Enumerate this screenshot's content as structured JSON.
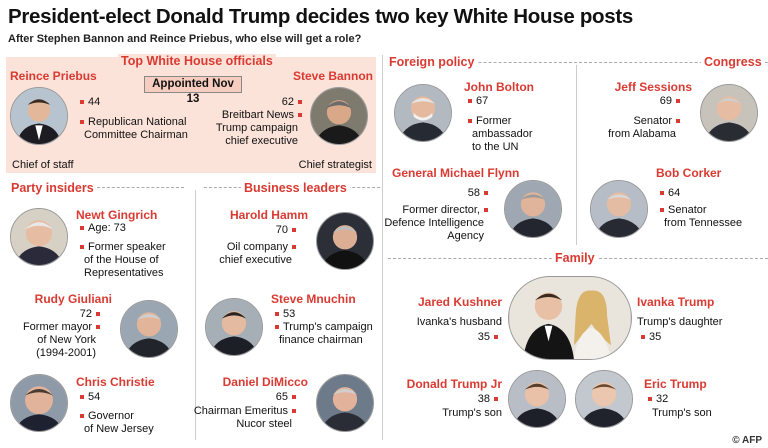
{
  "header": {
    "title": "President-elect Donald Trump decides two key White House posts",
    "subtitle": "After Stephen Bannon and Reince Priebus, who else will get a role?"
  },
  "sections": {
    "white_house": "Top White House officials",
    "party_insiders": "Party insiders",
    "business_leaders": "Business leaders",
    "foreign_policy": "Foreign policy",
    "congress": "Congress",
    "family": "Family"
  },
  "appointed_badge": "Appointed Nov 13",
  "people": {
    "priebus": {
      "name": "Reince Priebus",
      "age": "44",
      "role": [
        "Republican National",
        "Committee Chairman"
      ],
      "post": "Chief of staff"
    },
    "bannon": {
      "name": "Steve Bannon",
      "age": "62",
      "role": [
        "Breitbart News",
        "Trump campaign",
        "chief executive"
      ],
      "post": "Chief strategist"
    },
    "gingrich": {
      "name": "Newt Gingrich",
      "age": "Age: 73",
      "role": [
        "Former speaker",
        "of the House of",
        "Representatives"
      ]
    },
    "giuliani": {
      "name": "Rudy Giuliani",
      "age": "72",
      "role": [
        "Former mayor",
        "of New York",
        "(1994-2001)"
      ]
    },
    "christie": {
      "name": "Chris Christie",
      "age": "54",
      "role": [
        "Governor",
        "of New Jersey"
      ]
    },
    "hamm": {
      "name": "Harold Hamm",
      "age": "70",
      "role": [
        "Oil company",
        "chief executive"
      ]
    },
    "mnuchin": {
      "name": "Steve Mnuchin",
      "age": "53",
      "role": [
        "Trump's campaign",
        "finance chairman"
      ]
    },
    "dimicco": {
      "name": "Daniel DiMicco",
      "age": "65",
      "role": [
        "Chairman Emeritus",
        "Nucor steel"
      ]
    },
    "bolton": {
      "name": "John Bolton",
      "age": "67",
      "role": [
        "Former",
        "ambassador",
        "to the UN"
      ]
    },
    "flynn": {
      "name": "General Michael Flynn",
      "age": "58",
      "role": [
        "Former director,",
        "Defence Intelligence",
        "Agency"
      ]
    },
    "sessions": {
      "name": "Jeff Sessions",
      "age": "69",
      "role": [
        "Senator",
        "from Alabama"
      ]
    },
    "corker": {
      "name": "Bob Corker",
      "age": "64",
      "role": [
        "Senator",
        "from Tennessee"
      ]
    },
    "kushner": {
      "name": "Jared Kushner",
      "role": "Ivanka's husband",
      "age": "35"
    },
    "ivanka": {
      "name": "Ivanka Trump",
      "role": "Trump's daughter",
      "age": "35"
    },
    "djr": {
      "name": "Donald Trump Jr",
      "age": "38",
      "role": "Trump's son"
    },
    "eric": {
      "name": "Eric Trump",
      "age": "32",
      "role": "Trump's son"
    }
  },
  "credit": "AFP",
  "colors": {
    "accent": "#d93a32",
    "pink_panel": "#fbe3da",
    "badge": "#f6cdbf"
  }
}
